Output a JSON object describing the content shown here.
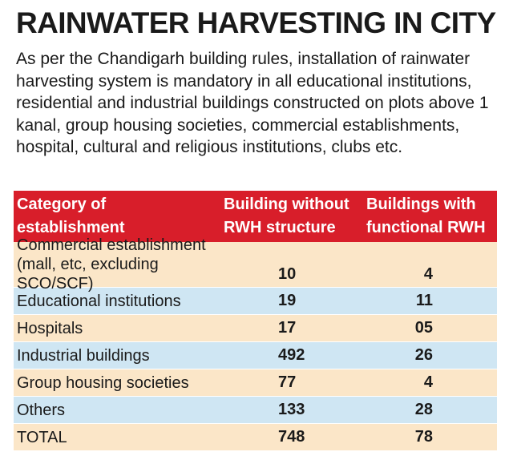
{
  "title": "RAINWATER HARVESTING IN CITY",
  "intro": "As per the Chandigarh building rules, installation of rainwater harvesting system is mandatory in all educational institutions, residential and industrial buildings constructed on plots above 1 kanal, group housing societies, commercial establishments, hospital, cultural and religious institutions, clubs etc.",
  "table": {
    "headers": {
      "category_line1": "Category of",
      "category_line2": "establishment",
      "without_line1": "Building without",
      "without_line2": "RWH structure",
      "with_line1": "Buildings with",
      "with_line2": "functional RWH"
    },
    "rows": [
      {
        "category_line1": "Commercial establishment",
        "category_line2": "(mall, etc, excluding SCO/SCF)",
        "without": "10",
        "with": "4"
      },
      {
        "category": "Educational institutions",
        "without": "19",
        "with": "11"
      },
      {
        "category": "Hospitals",
        "without": "17",
        "with": "05"
      },
      {
        "category": "Industrial buildings",
        "without": "492",
        "with": "26"
      },
      {
        "category": "Group housing societies",
        "without": "77",
        "with": "4"
      },
      {
        "category": "Others",
        "without": "133",
        "with": "28"
      },
      {
        "category": "TOTAL",
        "without": "748",
        "with": "78"
      }
    ],
    "colors": {
      "header_bg": "#d81e2a",
      "row_peach": "#fbe6c8",
      "row_blue": "#cfe6f3"
    }
  }
}
